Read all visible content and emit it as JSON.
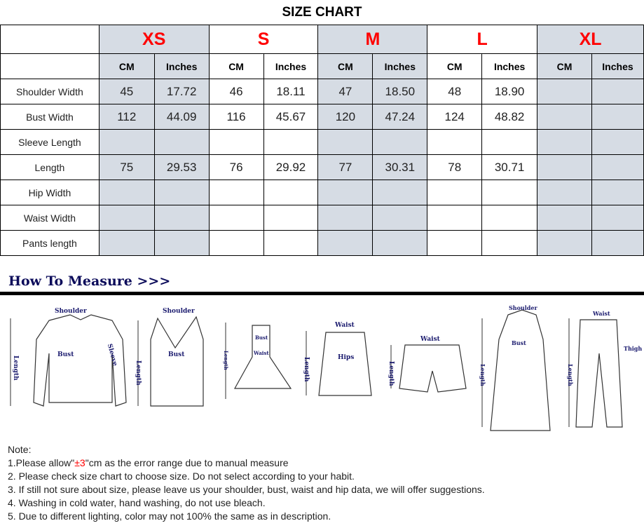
{
  "title": "SIZE CHART",
  "sizes": [
    "XS",
    "S",
    "M",
    "L",
    "XL"
  ],
  "units": [
    "CM",
    "Inches"
  ],
  "rows": [
    {
      "label": "Shoulder Width",
      "values": [
        "45",
        "17.72",
        "46",
        "18.11",
        "47",
        "18.50",
        "48",
        "18.90",
        "",
        ""
      ]
    },
    {
      "label": "Bust Width",
      "values": [
        "112",
        "44.09",
        "116",
        "45.67",
        "120",
        "47.24",
        "124",
        "48.82",
        "",
        ""
      ]
    },
    {
      "label": "Sleeve Length",
      "values": [
        "",
        "",
        "",
        "",
        "",
        "",
        "",
        "",
        "",
        ""
      ]
    },
    {
      "label": "Length",
      "values": [
        "75",
        "29.53",
        "76",
        "29.92",
        "77",
        "30.31",
        "78",
        "30.71",
        "",
        ""
      ]
    },
    {
      "label": "Hip Width",
      "values": [
        "",
        "",
        "",
        "",
        "",
        "",
        "",
        "",
        "",
        ""
      ]
    },
    {
      "label": "Waist Width",
      "values": [
        "",
        "",
        "",
        "",
        "",
        "",
        "",
        "",
        "",
        ""
      ]
    },
    {
      "label": "Pants length",
      "values": [
        "",
        "",
        "",
        "",
        "",
        "",
        "",
        "",
        "",
        ""
      ]
    }
  ],
  "measure": {
    "title": "How To Measure >>>",
    "labels": {
      "shoulder": "Shoulder",
      "bust": "Bust",
      "sleeve": "Sleeve",
      "length": "Length",
      "waist": "Waist",
      "hips": "Hips",
      "thigh": "Thigh"
    }
  },
  "notes": {
    "heading": "Note:",
    "n1_pre": "1.Please allow\"",
    "n1_red": "±3",
    "n1_post": "\"cm as the error range due to manual measure",
    "n2": "2. Please check size chart to choose size. Do not select according to your habit.",
    "n3": "3. If still not sure about size, please leave us your shoulder, bust, waist and hip data, we will offer suggestions.",
    "n4": "4. Washing in cold water, hand washing, do not use bleach.",
    "n5": "5. Due to different lighting, color may not 100% the same as in description."
  },
  "colors": {
    "size_label": "#ff0000",
    "shade": "#d6dce4",
    "heading": "#0b0b5a"
  }
}
